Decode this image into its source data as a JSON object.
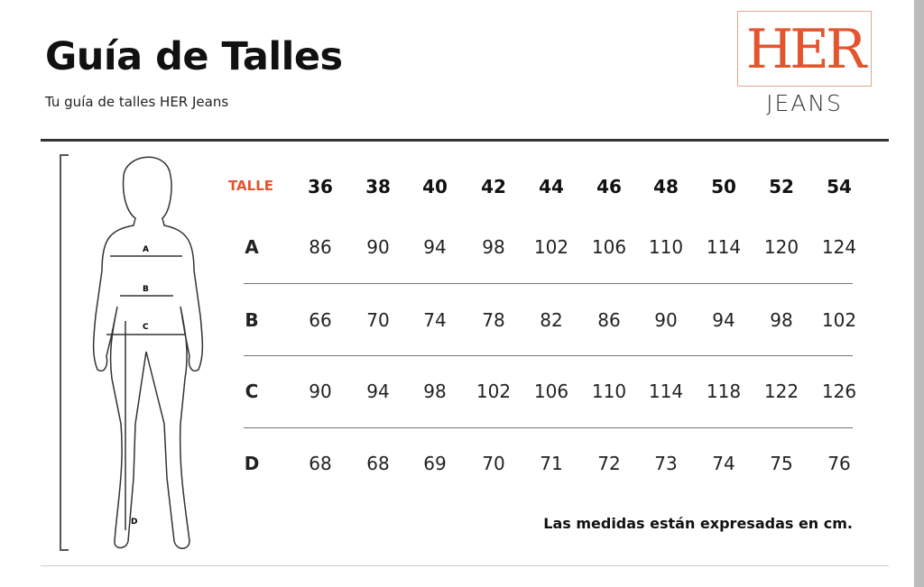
{
  "header": {
    "title": "Guía de Talles",
    "subtitle": "Tu guía de talles HER Jeans"
  },
  "logo": {
    "brand": "HER",
    "sub": "JEANS",
    "accent": "#e2552e"
  },
  "figure": {
    "labels": [
      "A",
      "B",
      "C",
      "D"
    ]
  },
  "table": {
    "header_label": "TALLE",
    "sizes": [
      "36",
      "38",
      "40",
      "42",
      "44",
      "46",
      "48",
      "50",
      "52",
      "54"
    ],
    "rows": [
      {
        "label": "A",
        "values": [
          "86",
          "90",
          "94",
          "98",
          "102",
          "106",
          "110",
          "114",
          "120",
          "124"
        ]
      },
      {
        "label": "B",
        "values": [
          "66",
          "70",
          "74",
          "78",
          "82",
          "86",
          "90",
          "94",
          "98",
          "102"
        ]
      },
      {
        "label": "C",
        "values": [
          "90",
          "94",
          "98",
          "102",
          "106",
          "110",
          "114",
          "118",
          "122",
          "126"
        ]
      },
      {
        "label": "D",
        "values": [
          "68",
          "68",
          "69",
          "70",
          "71",
          "72",
          "73",
          "74",
          "75",
          "76"
        ]
      }
    ]
  },
  "note": "Las medidas están expresadas en cm."
}
